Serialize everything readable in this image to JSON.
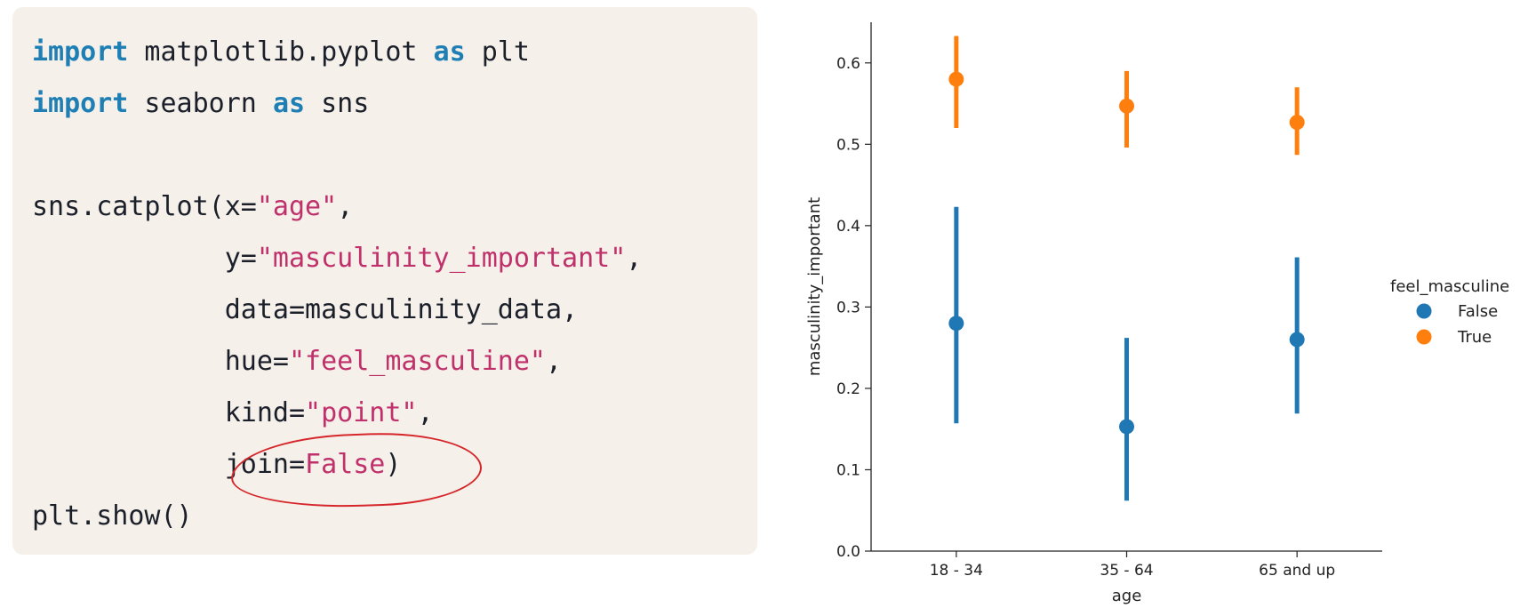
{
  "code": {
    "l1_kw1": "import",
    "l1_mid": " matplotlib.pyplot ",
    "l1_kw2": "as",
    "l1_end": " plt",
    "l2_kw1": "import",
    "l2_mid": " seaborn ",
    "l2_kw2": "as",
    "l2_end": " sns",
    "l4_pre": "sns.catplot(x=",
    "l4_str": "\"age\"",
    "l4_end": ",",
    "l5_pre": "            y=",
    "l5_str": "\"masculinity_important\"",
    "l5_end": ",",
    "l6": "            data=masculinity_data,",
    "l7_pre": "            hue=",
    "l7_str": "\"feel_masculine\"",
    "l7_end": ",",
    "l8_pre": "            kind=",
    "l8_str": "\"point\"",
    "l8_end": ",",
    "l9_pre": "            join=",
    "l9_bool": "False",
    "l9_end": ")",
    "l10": "plt.show()"
  },
  "chart_data": {
    "type": "scatter",
    "xlabel": "age",
    "ylabel": "masculinity_important",
    "categories": [
      "18 - 34",
      "35 - 64",
      "65 and up"
    ],
    "ylim": [
      0.0,
      0.65
    ],
    "yticks": [
      "0.0",
      "0.1",
      "0.2",
      "0.3",
      "0.4",
      "0.5",
      "0.6"
    ],
    "legend_title": "feel_masculine",
    "legend_position": "right",
    "series": [
      {
        "name": "False",
        "color": "#1f77b4",
        "values": [
          0.28,
          0.153,
          0.26
        ],
        "ci_low": [
          0.157,
          0.062,
          0.169
        ],
        "ci_high": [
          0.423,
          0.262,
          0.361
        ]
      },
      {
        "name": "True",
        "color": "#ff7f0e",
        "values": [
          0.58,
          0.547,
          0.527
        ],
        "ci_low": [
          0.52,
          0.496,
          0.487
        ],
        "ci_high": [
          0.633,
          0.59,
          0.57
        ]
      }
    ]
  }
}
